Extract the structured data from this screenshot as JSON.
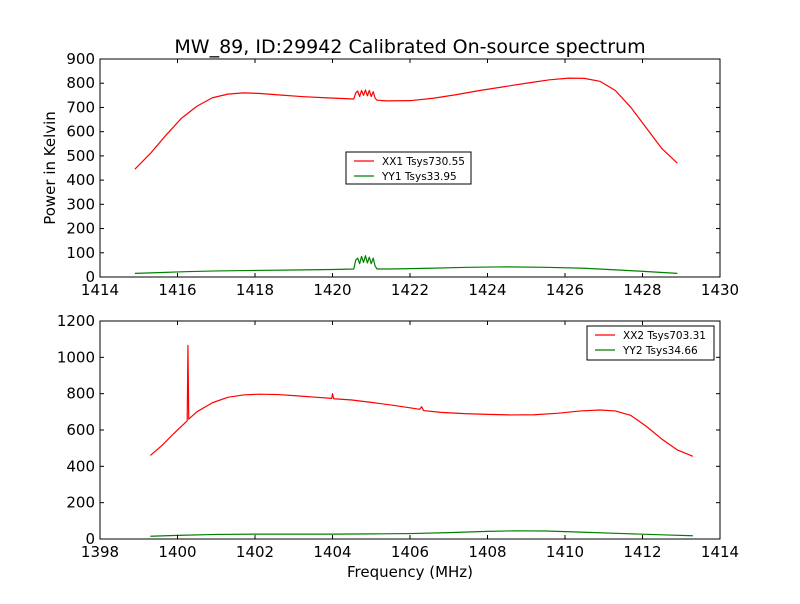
{
  "title": "MW_89, ID:29942 Calibrated On-source spectrum",
  "colors": {
    "xx": "#ff0000",
    "yy": "#008000",
    "axis": "#000000"
  },
  "chart_data": [
    {
      "type": "line",
      "ylabel": "Power in Kelvin",
      "xlabel": "",
      "xlim": [
        1414,
        1430
      ],
      "ylim": [
        0,
        900
      ],
      "xticks": [
        "1414",
        "1416",
        "1418",
        "1420",
        "1422",
        "1424",
        "1426",
        "1428",
        "1430"
      ],
      "yticks": [
        "0",
        "100",
        "200",
        "300",
        "400",
        "500",
        "600",
        "700",
        "800",
        "900"
      ],
      "legend_position": "center",
      "series": [
        {
          "name": "XX1 Tsys730.55",
          "color": "#ff0000",
          "points": [
            [
              1414.9,
              445
            ],
            [
              1415.3,
              510
            ],
            [
              1415.7,
              585
            ],
            [
              1416.1,
              655
            ],
            [
              1416.5,
              705
            ],
            [
              1416.9,
              740
            ],
            [
              1417.3,
              755
            ],
            [
              1417.7,
              760
            ],
            [
              1418.1,
              758
            ],
            [
              1418.6,
              752
            ],
            [
              1419.2,
              745
            ],
            [
              1419.8,
              740
            ],
            [
              1420.4,
              736
            ],
            [
              1420.55,
              735
            ],
            [
              1420.6,
              760
            ],
            [
              1420.65,
              768
            ],
            [
              1420.7,
              745
            ],
            [
              1420.75,
              770
            ],
            [
              1420.8,
              750
            ],
            [
              1420.85,
              772
            ],
            [
              1420.9,
              748
            ],
            [
              1420.95,
              770
            ],
            [
              1421.0,
              745
            ],
            [
              1421.05,
              765
            ],
            [
              1421.1,
              738
            ],
            [
              1421.15,
              730
            ],
            [
              1421.4,
              727
            ],
            [
              1422.0,
              728
            ],
            [
              1422.6,
              738
            ],
            [
              1423.2,
              753
            ],
            [
              1423.8,
              770
            ],
            [
              1424.4,
              785
            ],
            [
              1425.0,
              800
            ],
            [
              1425.6,
              814
            ],
            [
              1426.1,
              821
            ],
            [
              1426.5,
              820
            ],
            [
              1426.9,
              808
            ],
            [
              1427.3,
              770
            ],
            [
              1427.7,
              700
            ],
            [
              1428.1,
              615
            ],
            [
              1428.5,
              530
            ],
            [
              1428.9,
              470
            ]
          ]
        },
        {
          "name": "YY1 Tsys33.95",
          "color": "#008000",
          "points": [
            [
              1414.9,
              15
            ],
            [
              1415.5,
              18
            ],
            [
              1416.2,
              22
            ],
            [
              1417.0,
              25
            ],
            [
              1418.0,
              27
            ],
            [
              1419.0,
              29
            ],
            [
              1420.0,
              31
            ],
            [
              1420.55,
              33
            ],
            [
              1420.6,
              70
            ],
            [
              1420.65,
              78
            ],
            [
              1420.7,
              55
            ],
            [
              1420.75,
              85
            ],
            [
              1420.8,
              60
            ],
            [
              1420.85,
              88
            ],
            [
              1420.9,
              58
            ],
            [
              1420.95,
              82
            ],
            [
              1421.0,
              55
            ],
            [
              1421.05,
              78
            ],
            [
              1421.1,
              45
            ],
            [
              1421.15,
              33
            ],
            [
              1421.5,
              33
            ],
            [
              1422.5,
              36
            ],
            [
              1423.5,
              40
            ],
            [
              1424.5,
              42
            ],
            [
              1425.5,
              40
            ],
            [
              1426.5,
              36
            ],
            [
              1427.5,
              28
            ],
            [
              1428.9,
              15
            ]
          ]
        }
      ]
    },
    {
      "type": "line",
      "ylabel": "",
      "xlabel": "Frequency (MHz)",
      "xlim": [
        1398,
        1414
      ],
      "ylim": [
        0,
        1200
      ],
      "xticks": [
        "1398",
        "1400",
        "1402",
        "1404",
        "1406",
        "1408",
        "1410",
        "1412",
        "1414"
      ],
      "yticks": [
        "0",
        "200",
        "400",
        "600",
        "800",
        "1000",
        "1200"
      ],
      "legend_position": "top-right",
      "series": [
        {
          "name": "XX2 Tsys703.31",
          "color": "#ff0000",
          "points": [
            [
              1399.3,
              460
            ],
            [
              1399.6,
              515
            ],
            [
              1399.9,
              580
            ],
            [
              1400.2,
              640
            ],
            [
              1400.25,
              650
            ],
            [
              1400.27,
              1065
            ],
            [
              1400.29,
              660
            ],
            [
              1400.5,
              700
            ],
            [
              1400.9,
              750
            ],
            [
              1401.3,
              780
            ],
            [
              1401.7,
              793
            ],
            [
              1402.1,
              797
            ],
            [
              1402.6,
              795
            ],
            [
              1403.1,
              788
            ],
            [
              1403.6,
              780
            ],
            [
              1403.98,
              774
            ],
            [
              1404.0,
              800
            ],
            [
              1404.03,
              772
            ],
            [
              1404.5,
              765
            ],
            [
              1405.0,
              752
            ],
            [
              1405.5,
              738
            ],
            [
              1406.0,
              722
            ],
            [
              1406.25,
              714
            ],
            [
              1406.3,
              728
            ],
            [
              1406.35,
              707
            ],
            [
              1406.8,
              697
            ],
            [
              1407.4,
              690
            ],
            [
              1408.0,
              686
            ],
            [
              1408.6,
              683
            ],
            [
              1409.2,
              684
            ],
            [
              1409.8,
              692
            ],
            [
              1410.4,
              705
            ],
            [
              1410.9,
              710
            ],
            [
              1411.3,
              705
            ],
            [
              1411.7,
              680
            ],
            [
              1412.1,
              620
            ],
            [
              1412.5,
              550
            ],
            [
              1412.9,
              490
            ],
            [
              1413.3,
              455
            ]
          ]
        },
        {
          "name": "YY2 Tsys34.66",
          "color": "#008000",
          "points": [
            [
              1399.3,
              15
            ],
            [
              1400.0,
              20
            ],
            [
              1401.0,
              25
            ],
            [
              1402.0,
              27
            ],
            [
              1403.0,
              27
            ],
            [
              1404.0,
              27
            ],
            [
              1405.0,
              28
            ],
            [
              1406.0,
              30
            ],
            [
              1407.0,
              35
            ],
            [
              1408.0,
              42
            ],
            [
              1408.7,
              45
            ],
            [
              1409.5,
              44
            ],
            [
              1410.5,
              37
            ],
            [
              1411.5,
              30
            ],
            [
              1412.5,
              23
            ],
            [
              1413.3,
              18
            ]
          ]
        }
      ]
    }
  ]
}
